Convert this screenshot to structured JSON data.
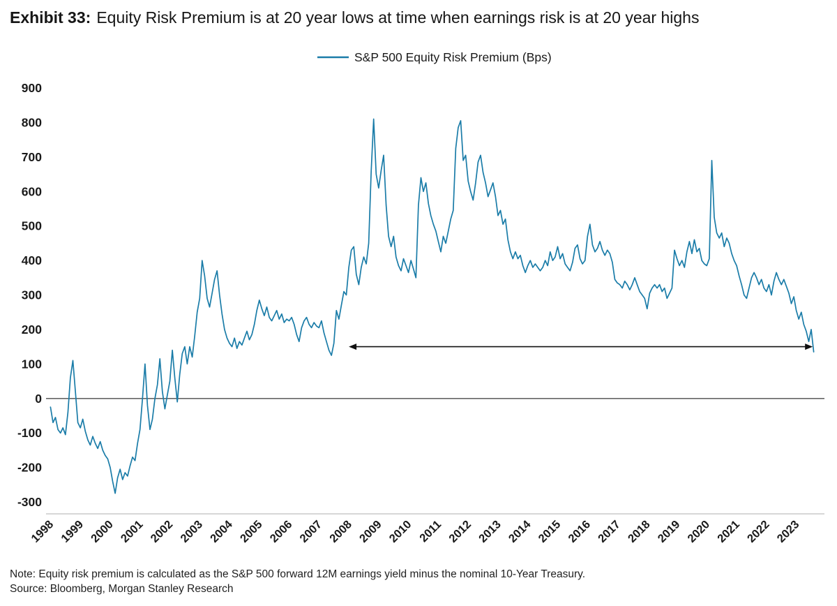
{
  "title": {
    "prefix": "Exhibit 33:",
    "text": "Equity Risk Premium is at 20 year lows at time when earnings risk is at 20 year highs"
  },
  "notes": {
    "line1": "Note: Equity risk premium is calculated as the S&P 500 forward 12M earnings yield minus the nominal 10-Year Treasury.",
    "line2": "Source: Bloomberg, Morgan Stanley Research"
  },
  "chart_data": {
    "type": "line",
    "legend": "S&P 500 Equity Risk Premium (Bps)",
    "line_color": "#1a7ca8",
    "zero_line_color": "#4a4a4a",
    "axis_color": "#bfbfbf",
    "text_color": "#1a1a1a",
    "ylim": [
      -300,
      900
    ],
    "xlim": [
      1997.85,
      2023.85
    ],
    "y_ticks": [
      900,
      800,
      700,
      600,
      500,
      400,
      300,
      200,
      100,
      0,
      -100,
      -200,
      -300
    ],
    "x_ticks": [
      1998,
      1999,
      2000,
      2001,
      2002,
      2003,
      2004,
      2005,
      2006,
      2007,
      2008,
      2009,
      2010,
      2011,
      2012,
      2013,
      2014,
      2015,
      2016,
      2017,
      2018,
      2019,
      2020,
      2021,
      2022,
      2023
    ],
    "x_start": 1998.0,
    "points_per_year": 12,
    "values": [
      -25,
      -70,
      -55,
      -90,
      -100,
      -85,
      -105,
      -40,
      60,
      110,
      20,
      -70,
      -85,
      -60,
      -95,
      -120,
      -135,
      -110,
      -130,
      -145,
      -125,
      -150,
      -165,
      -175,
      -200,
      -240,
      -275,
      -230,
      -205,
      -235,
      -215,
      -225,
      -195,
      -170,
      -180,
      -130,
      -90,
      0,
      100,
      -20,
      -90,
      -60,
      0,
      40,
      115,
      20,
      -30,
      10,
      50,
      140,
      60,
      -10,
      70,
      130,
      150,
      100,
      150,
      120,
      180,
      250,
      290,
      400,
      355,
      290,
      265,
      305,
      345,
      370,
      300,
      245,
      200,
      175,
      160,
      150,
      175,
      145,
      165,
      155,
      175,
      195,
      170,
      185,
      215,
      255,
      285,
      260,
      240,
      265,
      235,
      225,
      240,
      255,
      230,
      245,
      220,
      230,
      225,
      235,
      215,
      185,
      165,
      205,
      225,
      235,
      215,
      205,
      220,
      210,
      205,
      225,
      190,
      165,
      140,
      125,
      160,
      255,
      230,
      270,
      310,
      300,
      380,
      430,
      440,
      360,
      330,
      380,
      410,
      390,
      450,
      660,
      810,
      650,
      610,
      660,
      705,
      560,
      470,
      440,
      470,
      410,
      385,
      370,
      405,
      385,
      365,
      400,
      375,
      350,
      560,
      640,
      600,
      625,
      565,
      530,
      505,
      485,
      455,
      425,
      470,
      450,
      485,
      520,
      545,
      725,
      785,
      805,
      690,
      705,
      630,
      600,
      575,
      625,
      685,
      705,
      655,
      625,
      585,
      605,
      625,
      585,
      530,
      545,
      505,
      520,
      460,
      425,
      405,
      425,
      405,
      415,
      385,
      365,
      385,
      400,
      380,
      390,
      380,
      370,
      380,
      400,
      385,
      425,
      400,
      410,
      440,
      405,
      420,
      390,
      380,
      370,
      395,
      435,
      445,
      405,
      390,
      400,
      470,
      505,
      445,
      425,
      435,
      455,
      430,
      415,
      430,
      420,
      395,
      345,
      335,
      330,
      320,
      340,
      330,
      315,
      330,
      350,
      330,
      310,
      300,
      290,
      260,
      305,
      320,
      330,
      320,
      330,
      310,
      320,
      290,
      305,
      320,
      430,
      405,
      385,
      400,
      380,
      425,
      455,
      420,
      460,
      425,
      435,
      400,
      390,
      385,
      405,
      690,
      525,
      480,
      465,
      480,
      440,
      465,
      450,
      420,
      400,
      385,
      355,
      330,
      300,
      290,
      320,
      350,
      365,
      350,
      330,
      345,
      320,
      310,
      330,
      300,
      340,
      365,
      345,
      330,
      345,
      325,
      305,
      275,
      295,
      255,
      230,
      250,
      215,
      195,
      165,
      200,
      135
    ],
    "annotations": [
      {
        "type": "double_arrow",
        "y": 150,
        "x1": 2008.0,
        "x2": 2023.55
      }
    ]
  }
}
